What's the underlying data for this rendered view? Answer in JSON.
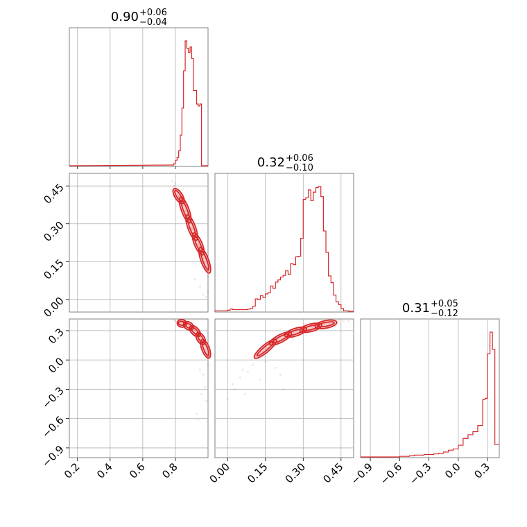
{
  "colors": {
    "series": "#d62728",
    "frame": "#808080",
    "grid": "#b0b0b0"
  },
  "chart_data": [
    {
      "type": "histogram",
      "panel": "p0",
      "title": {
        "value": "0.90",
        "plus": "+0.06",
        "minus": "−0.04"
      },
      "xlim": [
        0.15,
        1.0
      ],
      "grid": true,
      "bins": [
        0.78,
        0.79,
        0.8,
        0.81,
        0.82,
        0.83,
        0.84,
        0.85,
        0.86,
        0.87,
        0.88,
        0.89,
        0.9,
        0.91,
        0.92,
        0.93,
        0.94,
        0.95,
        0.96,
        0.97,
        0.98,
        0.99,
        1.0
      ],
      "counts": [
        1,
        3,
        8,
        12,
        22,
        45,
        85,
        140,
        184,
        173,
        167,
        175,
        158,
        111,
        111,
        91,
        88,
        91,
        0,
        0,
        0,
        0
      ]
    },
    {
      "type": "histogram",
      "panel": "p1",
      "title": {
        "value": "0.32",
        "plus": "+0.06",
        "minus": "−0.10"
      },
      "xlim": [
        -0.05,
        0.5
      ],
      "grid": true,
      "xticks": [
        "0.00",
        "0.15",
        "0.30",
        "0.45"
      ],
      "bins": [
        -0.05,
        -0.04,
        -0.03,
        -0.02,
        -0.01,
        0.0,
        0.01,
        0.02,
        0.03,
        0.04,
        0.05,
        0.06,
        0.07,
        0.08,
        0.09,
        0.1,
        0.11,
        0.12,
        0.13,
        0.14,
        0.15,
        0.16,
        0.17,
        0.18,
        0.19,
        0.2,
        0.21,
        0.22,
        0.23,
        0.24,
        0.25,
        0.26,
        0.27,
        0.28,
        0.29,
        0.3,
        0.31,
        0.32,
        0.33,
        0.34,
        0.35,
        0.36,
        0.37,
        0.38,
        0.39,
        0.4,
        0.41,
        0.42,
        0.43,
        0.44,
        0.45,
        0.46,
        0.47,
        0.48,
        0.49,
        0.5
      ],
      "counts": [
        1,
        1,
        1,
        1,
        1,
        2,
        4,
        3,
        3,
        3,
        3,
        3,
        3,
        4,
        5,
        9,
        22,
        21,
        28,
        25,
        31,
        33,
        45,
        41,
        52,
        56,
        61,
        64,
        72,
        66,
        85,
        83,
        97,
        98,
        130,
        199,
        202,
        216,
        197,
        212,
        220,
        222,
        204,
        143,
        105,
        63,
        51,
        29,
        17,
        12,
        5,
        1,
        1,
        0,
        0
      ],
      "counts_note": "",
      "ylim_note": ""
    },
    {
      "type": "histogram",
      "panel": "p2",
      "title": {
        "value": "0.31",
        "plus": "+0.05",
        "minus": "−0.12"
      },
      "xlim": [
        -1.0,
        0.42
      ],
      "grid": true,
      "xticks": [
        "−0.9",
        "−0.6",
        "−0.3",
        "0.0",
        "0.3"
      ],
      "bins": [
        -1.0,
        -0.9,
        -0.8,
        -0.7,
        -0.6,
        -0.55,
        -0.5,
        -0.45,
        -0.4,
        -0.35,
        -0.3,
        -0.25,
        -0.2,
        -0.15,
        -0.1,
        -0.05,
        0.0,
        0.05,
        0.1,
        0.15,
        0.2,
        0.25,
        0.275,
        0.3,
        0.325,
        0.35,
        0.375,
        0.4,
        0.42
      ],
      "counts": [
        0,
        0,
        0,
        0,
        1,
        1,
        2,
        3,
        3,
        4,
        4,
        5,
        6,
        8,
        11,
        13,
        19,
        30,
        36,
        41,
        51,
        93,
        95,
        167,
        202,
        174,
        20,
        20
      ],
      "counts_note": ""
    },
    {
      "type": "scatter",
      "panel": "p10",
      "xlim": [
        0.15,
        1.0
      ],
      "ylim": [
        -0.05,
        0.5
      ],
      "grid": true,
      "yticks": [
        "0.00",
        "0.15",
        "0.30",
        "0.45"
      ],
      "contour_centers": [
        [
          0.8,
          0.43
        ],
        [
          0.84,
          0.39
        ],
        [
          0.88,
          0.32
        ],
        [
          0.92,
          0.25
        ],
        [
          0.96,
          0.19
        ],
        [
          1.0,
          0.12
        ]
      ],
      "points": [
        [
          0.78,
          0.47
        ],
        [
          0.79,
          0.45
        ],
        [
          0.8,
          0.46
        ],
        [
          0.81,
          0.44
        ],
        [
          0.82,
          0.41
        ],
        [
          0.83,
          0.4
        ],
        [
          0.84,
          0.42
        ],
        [
          0.85,
          0.37
        ],
        [
          0.86,
          0.35
        ],
        [
          0.87,
          0.36
        ],
        [
          0.88,
          0.34
        ],
        [
          0.89,
          0.31
        ],
        [
          0.9,
          0.28
        ],
        [
          0.91,
          0.29
        ],
        [
          0.92,
          0.27
        ],
        [
          0.93,
          0.24
        ],
        [
          0.94,
          0.22
        ],
        [
          0.95,
          0.21
        ],
        [
          0.96,
          0.18
        ],
        [
          0.97,
          0.16
        ],
        [
          0.98,
          0.13
        ],
        [
          0.99,
          0.11
        ],
        [
          1.0,
          0.09
        ],
        [
          0.95,
          0.05
        ],
        [
          0.97,
          0.02
        ],
        [
          1.0,
          0.03
        ],
        [
          0.92,
          0.08
        ],
        [
          0.99,
          0.01
        ]
      ]
    },
    {
      "type": "scatter",
      "panel": "p20",
      "xlim": [
        0.15,
        1.0
      ],
      "ylim": [
        -1.0,
        0.42
      ],
      "grid": true,
      "xticks": [
        "0.2",
        "0.4",
        "0.6",
        "0.8"
      ],
      "yticks": [
        "0.3",
        "0.0",
        "−0.3",
        "−0.6",
        "−0.9"
      ],
      "contour_centers": [
        [
          0.82,
          0.38
        ],
        [
          0.86,
          0.37
        ],
        [
          0.9,
          0.33
        ],
        [
          0.94,
          0.26
        ],
        [
          0.97,
          0.18
        ],
        [
          1.0,
          0.05
        ]
      ],
      "points": [
        [
          0.79,
          0.41
        ],
        [
          0.8,
          0.4
        ],
        [
          0.82,
          0.41
        ],
        [
          0.84,
          0.39
        ],
        [
          0.86,
          0.38
        ],
        [
          0.88,
          0.37
        ],
        [
          0.9,
          0.35
        ],
        [
          0.92,
          0.31
        ],
        [
          0.94,
          0.26
        ],
        [
          0.95,
          0.22
        ],
        [
          0.96,
          0.18
        ],
        [
          0.97,
          0.13
        ],
        [
          0.98,
          0.08
        ],
        [
          0.99,
          0.02
        ],
        [
          1.0,
          -0.05
        ],
        [
          0.97,
          -0.15
        ],
        [
          0.98,
          -0.28
        ],
        [
          0.96,
          -0.35
        ],
        [
          0.99,
          -0.42
        ],
        [
          0.95,
          -0.1
        ],
        [
          0.93,
          -0.55
        ],
        [
          0.94,
          -0.61
        ]
      ]
    },
    {
      "type": "scatter",
      "panel": "p21",
      "xlim": [
        -0.05,
        0.5
      ],
      "ylim": [
        -1.0,
        0.42
      ],
      "grid": true,
      "xticks": [
        "0.00",
        "0.15",
        "0.30",
        "0.45"
      ],
      "contour_centers": [
        [
          0.12,
          0.05
        ],
        [
          0.18,
          0.18
        ],
        [
          0.24,
          0.26
        ],
        [
          0.3,
          0.31
        ],
        [
          0.36,
          0.35
        ],
        [
          0.42,
          0.38
        ]
      ],
      "points": [
        [
          0.0,
          -0.4
        ],
        [
          0.02,
          -0.25
        ],
        [
          0.03,
          -0.3
        ],
        [
          0.05,
          -0.18
        ],
        [
          0.06,
          -0.1
        ],
        [
          0.08,
          -0.12
        ],
        [
          0.1,
          -0.05
        ],
        [
          0.11,
          0.02
        ],
        [
          0.12,
          0.05
        ],
        [
          0.14,
          0.08
        ],
        [
          0.15,
          -0.02
        ],
        [
          0.16,
          0.12
        ],
        [
          0.18,
          0.14
        ],
        [
          0.2,
          0.18
        ],
        [
          0.21,
          -0.15
        ],
        [
          0.22,
          -0.3
        ],
        [
          0.24,
          0.24
        ],
        [
          0.26,
          0.22
        ],
        [
          0.28,
          0.28
        ],
        [
          0.3,
          0.31
        ],
        [
          0.32,
          0.29
        ],
        [
          0.34,
          0.33
        ],
        [
          0.36,
          0.36
        ],
        [
          0.38,
          0.35
        ],
        [
          0.4,
          0.38
        ],
        [
          0.42,
          0.39
        ],
        [
          0.44,
          0.41
        ],
        [
          0.46,
          0.4
        ],
        [
          0.48,
          0.4
        ],
        [
          0.07,
          -0.35
        ],
        [
          0.13,
          -0.2
        ],
        [
          0.19,
          -0.08
        ]
      ]
    }
  ]
}
